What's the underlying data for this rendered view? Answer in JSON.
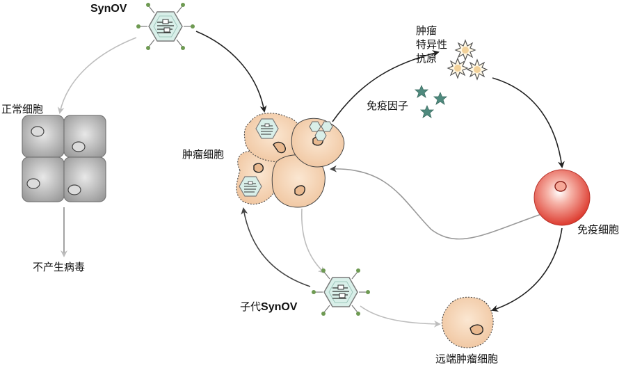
{
  "labels": {
    "synov": "SynOV",
    "normal_cells": "正常细胞",
    "no_virus": "不产生病毒",
    "tumor_cells": "肿瘤细胞",
    "tumor_antigen_line1": "肿瘤",
    "tumor_antigen_line2": "特异性",
    "tumor_antigen_line3": "抗原",
    "immune_factors": "免疫因子",
    "immune_cell": "免疫细胞",
    "progeny_prefix": "子代",
    "progeny_synov": "SynOV",
    "distant_tumor": "远端肿瘤细胞"
  },
  "colors": {
    "virus_fill": "#d9efe9",
    "virus_stroke": "#7a7a7a",
    "spike_dot": "#6e9a52",
    "normal_cell": "#b8b8b8",
    "tumor_cell": "#f5d6b3",
    "star": "#4f8a7e",
    "immune_cell": "#e0463a",
    "arrow_dark": "#222222",
    "arrow_light": "#bdbdbd"
  }
}
